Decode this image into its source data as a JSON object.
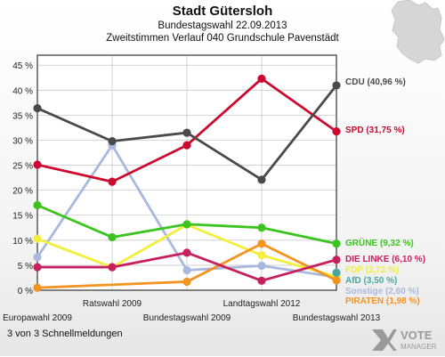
{
  "header": {
    "title": "Stadt Gütersloh",
    "subtitle": "Bundestagswahl 22.09.2013",
    "subtitle2": "Zweitstimmen Verlauf 040 Grundschule Pavenstädt"
  },
  "footer": {
    "note": "3 von 3 Schnellmeldungen"
  },
  "brand": {
    "name": "VOTE",
    "tag": "MANAGER"
  },
  "chart_data": {
    "type": "line",
    "title": "Stadt Gütersloh",
    "subtitle": "Zweitstimmen Verlauf 040 Grundschule Pavenstädt",
    "x": [
      "Europawahl 2009",
      "Ratswahl 2009",
      "Bundestagswahl 2009",
      "Landtagswahl 2012",
      "Bundestagswahl 2013"
    ],
    "ylim": [
      0,
      47
    ],
    "yticks": [
      0,
      5,
      10,
      15,
      20,
      25,
      30,
      35,
      40,
      45
    ],
    "ytick_labels": [
      "0 %",
      "5 %",
      "10 %",
      "15 %",
      "20 %",
      "25 %",
      "30 %",
      "35 %",
      "40 %",
      "45 %"
    ],
    "grid": true,
    "series": [
      {
        "name": "Sonstige",
        "color": "#a9b8de",
        "values": [
          6.6,
          29.0,
          4.0,
          4.9,
          2.6
        ],
        "label": "Sonstige (2,60 %)"
      },
      {
        "name": "FDP",
        "color": "#f2ee3c",
        "values": [
          10.3,
          4.6,
          13.1,
          7.0,
          2.72
        ],
        "label": "FDP (2,72 %)"
      },
      {
        "name": "AfD",
        "color": "#4aa6a0",
        "values": [
          null,
          null,
          null,
          null,
          3.5
        ],
        "label": "AfD (3,50 %)"
      },
      {
        "name": "PIRATEN",
        "color": "#f39322",
        "values": [
          0.5,
          null,
          1.7,
          9.3,
          1.98
        ],
        "label": "PIRATEN (1,98 %)"
      },
      {
        "name": "DIE LINKE",
        "color": "#c7215d",
        "values": [
          4.6,
          4.6,
          7.5,
          1.9,
          6.1
        ],
        "label": "DIE LINKE (6,10 %)"
      },
      {
        "name": "GRÜNE",
        "color": "#3cc41e",
        "values": [
          17.0,
          10.6,
          13.2,
          12.5,
          9.32
        ],
        "label": "GRÜNE (9,32 %)"
      },
      {
        "name": "SPD",
        "color": "#cc0a2f",
        "values": [
          25.1,
          21.7,
          29.0,
          42.3,
          31.75
        ],
        "label": "SPD (31,75 %)"
      },
      {
        "name": "CDU",
        "color": "#4a4a4a",
        "values": [
          36.4,
          29.8,
          31.5,
          22.1,
          40.96
        ],
        "label": "CDU (40,96 %)"
      }
    ]
  }
}
